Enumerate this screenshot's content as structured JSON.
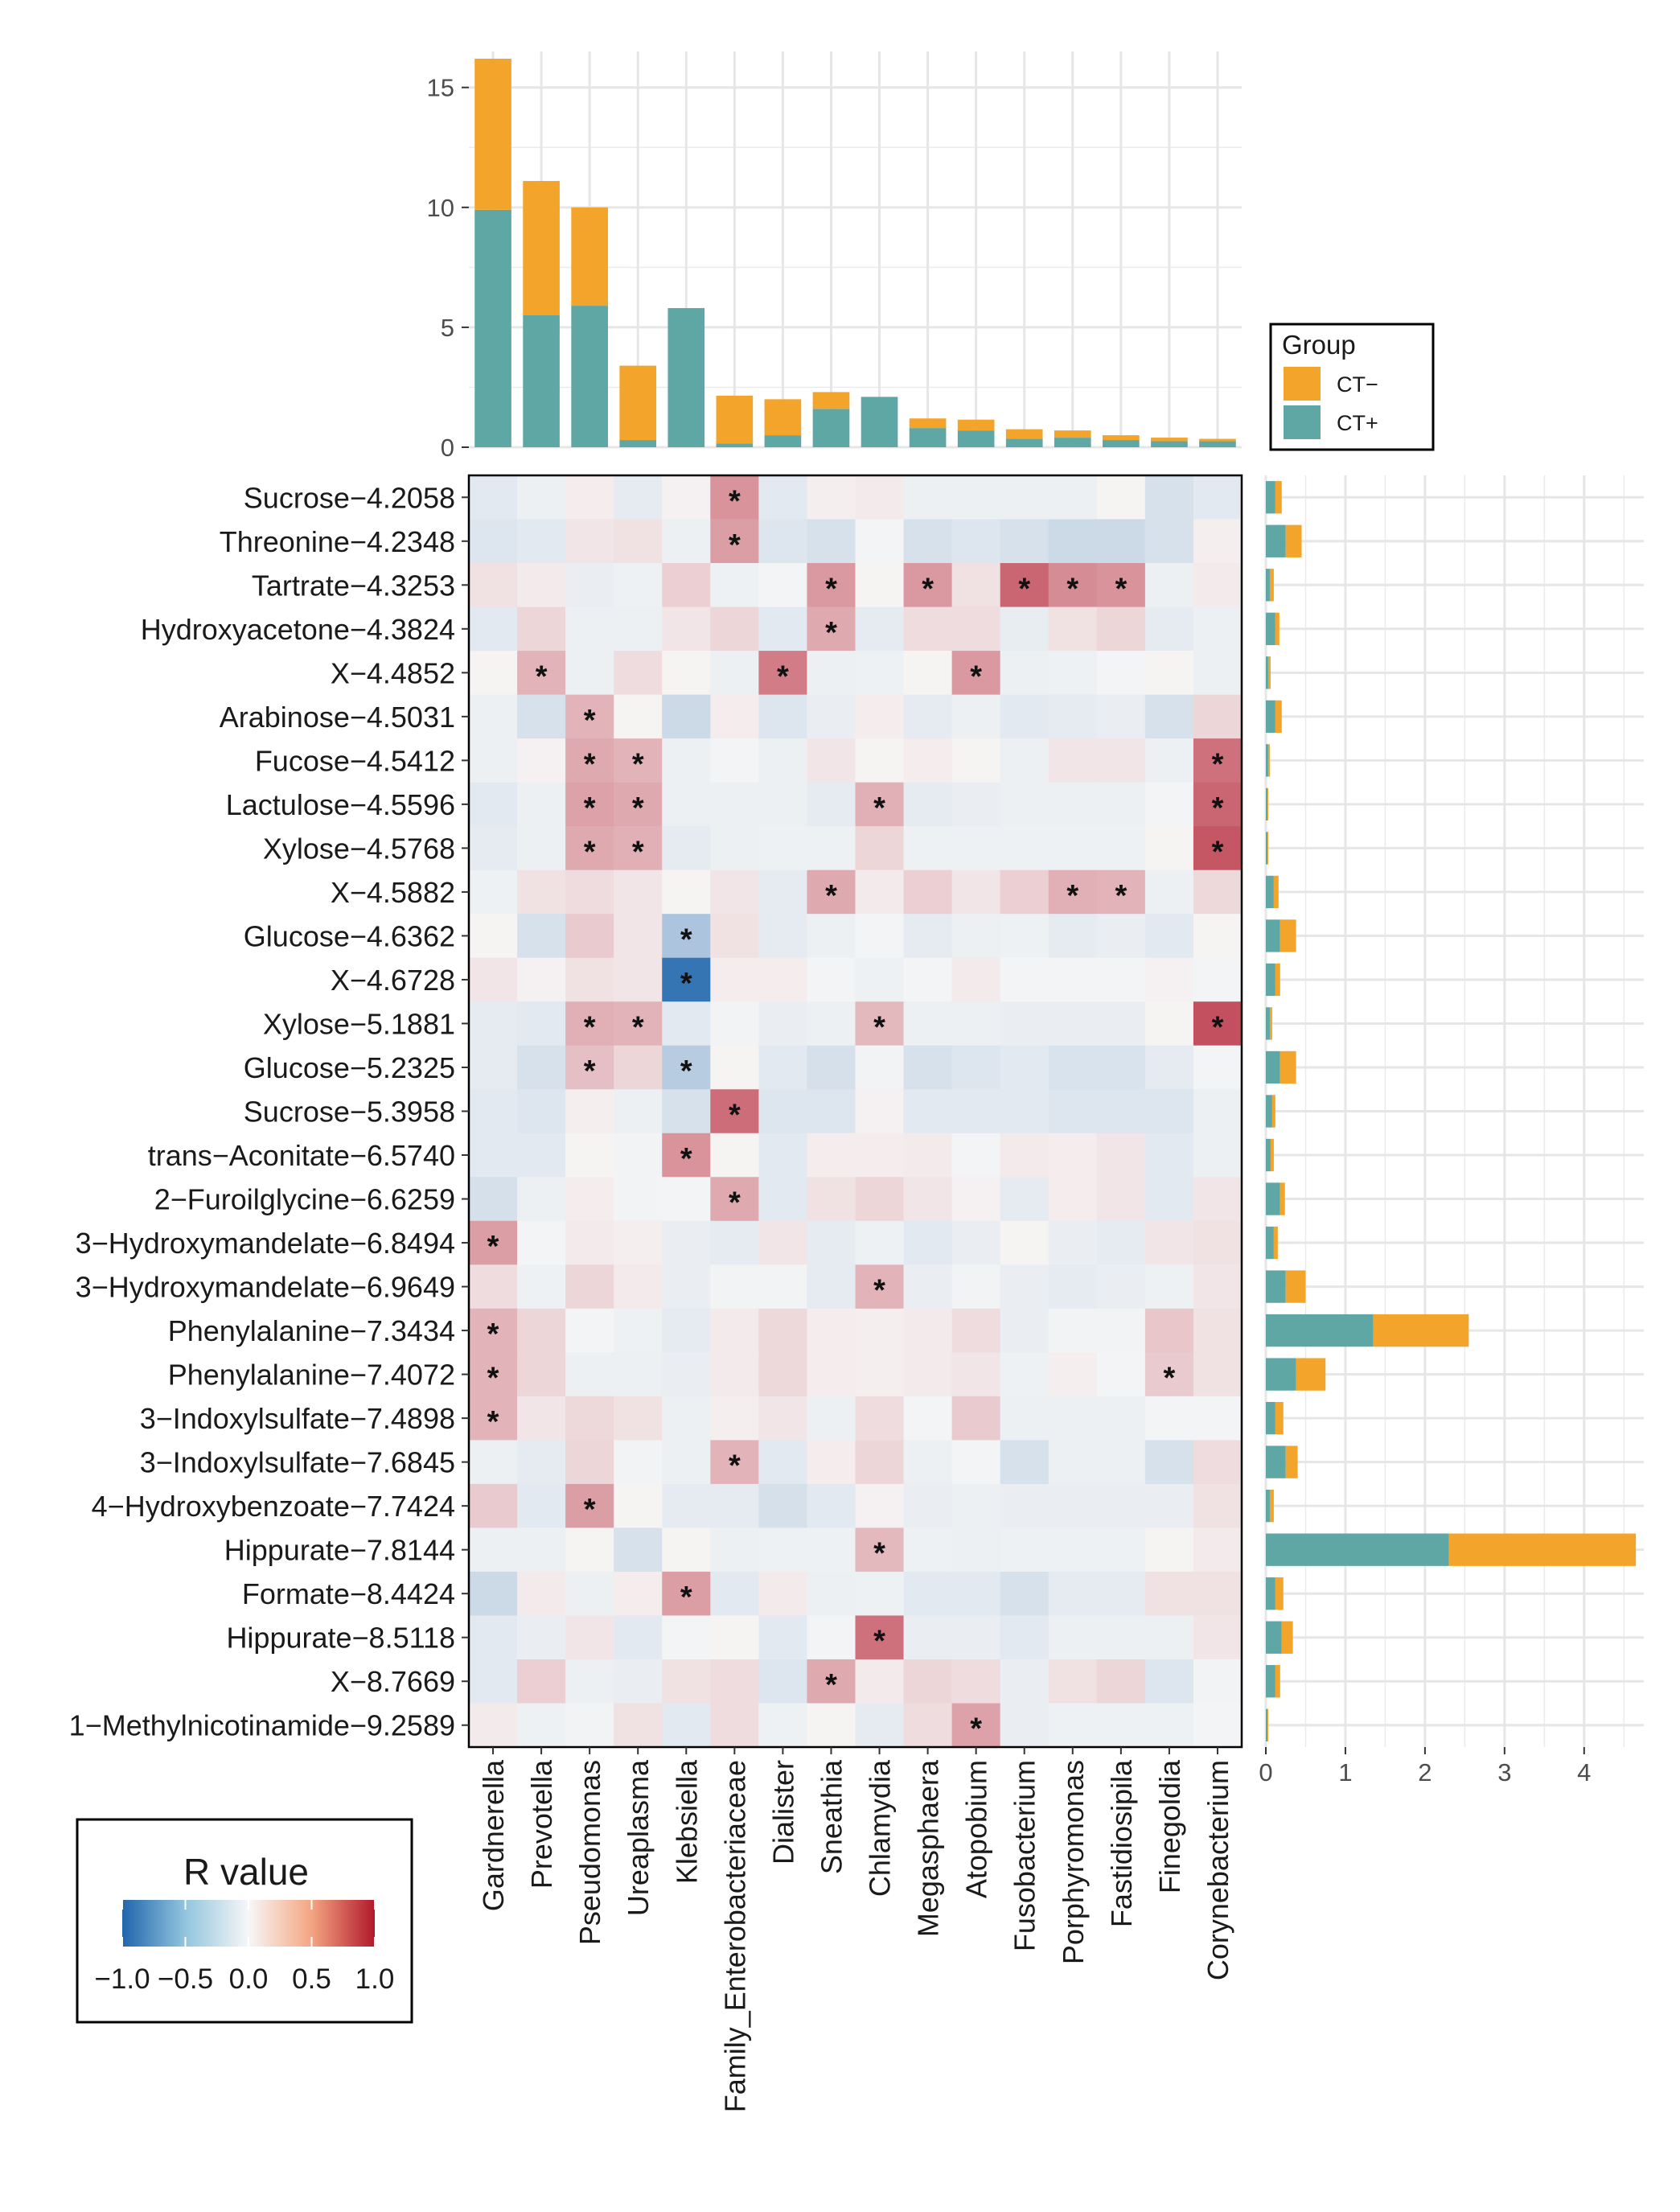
{
  "chart_data": [
    {
      "type": "heatmap",
      "title": "",
      "colorbar_title": "R value",
      "colorbar_ticks": [
        "−1.0",
        "−0.5",
        "0.0",
        "0.5",
        "1.0"
      ],
      "colorbar_range": [
        -1,
        1
      ],
      "colors": {
        "negative": "#2166ac",
        "zero": "#f7f7f7",
        "positive": "#b2182b"
      },
      "significance_marker": "*",
      "columns": [
        "Gardnerella",
        "Prevotella",
        "Pseudomonas",
        "Ureaplasma",
        "Klebsiella",
        "Family_Enterobacteriaceae",
        "Dialister",
        "Sneathia",
        "Chlamydia",
        "Megasphaera",
        "Atopobium",
        "Fusobacterium",
        "Porphyromonas",
        "Fastidiosipila",
        "Finegoldia",
        "Corynebacterium"
      ],
      "rows": [
        "Sucrose−4.2058",
        "Threonine−4.2348",
        "Tartrate−4.3253",
        "Hydroxyacetone−4.3824",
        "X−4.4852",
        "Arabinose−4.5031",
        "Fucose−4.5412",
        "Lactulose−4.5596",
        "Xylose−4.5768",
        "X−4.5882",
        "Glucose−4.6362",
        "X−4.6728",
        "Xylose−5.1881",
        "Glucose−5.2325",
        "Sucrose−5.3958",
        "trans−Aconitate−6.5740",
        "2−Furoilglycine−6.6259",
        "3−Hydroxymandelate−6.8494",
        "3−Hydroxymandelate−6.9649",
        "Phenylalanine−7.3434",
        "Phenylalanine−7.4072",
        "3−Indoxylsulfate−7.4898",
        "3−Indoxylsulfate−7.6845",
        "4−Hydroxybenzoate−7.7424",
        "Hippurate−7.8144",
        "Formate−8.4424",
        "Hippurate−8.5118",
        "X−8.7669",
        "1−Methylnicotinamide−9.2589"
      ],
      "values": [
        [
          -0.1,
          -0.05,
          0.05,
          -0.08,
          0.03,
          0.45,
          -0.1,
          0.04,
          0.06,
          -0.05,
          -0.05,
          -0.05,
          -0.05,
          0.02,
          -0.15,
          -0.1
        ],
        [
          -0.12,
          -0.1,
          0.08,
          0.1,
          -0.05,
          0.4,
          -0.12,
          -0.15,
          -0.02,
          -0.15,
          -0.12,
          -0.15,
          -0.2,
          -0.2,
          -0.15,
          0.04
        ],
        [
          0.1,
          0.06,
          -0.06,
          -0.04,
          0.18,
          -0.04,
          -0.02,
          0.42,
          0.02,
          0.42,
          0.1,
          0.65,
          0.48,
          0.45,
          -0.05,
          0.06
        ],
        [
          -0.1,
          0.15,
          -0.05,
          -0.05,
          0.08,
          0.15,
          -0.1,
          0.35,
          -0.08,
          0.12,
          0.12,
          -0.07,
          0.1,
          0.15,
          -0.08,
          -0.05
        ],
        [
          0.02,
          0.3,
          -0.05,
          0.12,
          0.02,
          -0.05,
          0.55,
          -0.05,
          -0.04,
          0.02,
          0.42,
          -0.05,
          -0.04,
          -0.02,
          0.02,
          -0.05
        ],
        [
          -0.05,
          -0.15,
          0.3,
          0.02,
          -0.2,
          0.05,
          -0.12,
          -0.06,
          0.05,
          -0.08,
          -0.05,
          -0.1,
          -0.08,
          -0.06,
          -0.15,
          0.15
        ],
        [
          -0.05,
          0.03,
          0.35,
          0.3,
          -0.05,
          -0.02,
          -0.05,
          0.08,
          0.02,
          0.05,
          0.02,
          -0.05,
          0.08,
          0.08,
          -0.05,
          0.6
        ],
        [
          -0.1,
          -0.05,
          0.38,
          0.35,
          -0.05,
          -0.05,
          -0.05,
          -0.08,
          0.32,
          -0.08,
          -0.06,
          -0.05,
          -0.05,
          -0.05,
          -0.02,
          0.65
        ],
        [
          -0.08,
          -0.05,
          0.35,
          0.32,
          -0.08,
          -0.05,
          -0.04,
          -0.04,
          0.15,
          -0.04,
          -0.04,
          -0.04,
          -0.04,
          -0.04,
          0.02,
          0.72
        ],
        [
          -0.04,
          0.1,
          0.12,
          0.08,
          0.02,
          0.08,
          -0.08,
          0.35,
          0.06,
          0.18,
          0.08,
          0.18,
          0.32,
          0.3,
          -0.05,
          0.14
        ],
        [
          0.02,
          -0.15,
          0.2,
          0.08,
          -0.35,
          0.1,
          -0.08,
          -0.05,
          -0.02,
          -0.08,
          -0.05,
          -0.04,
          -0.08,
          -0.06,
          -0.1,
          0.02
        ],
        [
          0.08,
          0.03,
          0.1,
          0.08,
          -0.9,
          0.05,
          0.05,
          -0.02,
          -0.04,
          -0.02,
          0.06,
          -0.02,
          -0.02,
          -0.02,
          0.03,
          -0.02
        ],
        [
          -0.08,
          -0.1,
          0.32,
          0.3,
          -0.1,
          -0.03,
          -0.06,
          -0.05,
          0.28,
          -0.05,
          -0.05,
          -0.06,
          -0.06,
          -0.06,
          0.02,
          0.75
        ],
        [
          -0.08,
          -0.15,
          0.25,
          0.15,
          -0.3,
          0.02,
          -0.1,
          -0.16,
          -0.03,
          -0.15,
          -0.12,
          -0.1,
          -0.14,
          -0.14,
          -0.08,
          -0.02
        ],
        [
          -0.1,
          -0.12,
          0.04,
          -0.05,
          -0.15,
          0.62,
          -0.12,
          -0.12,
          0.03,
          -0.1,
          -0.1,
          -0.1,
          -0.12,
          -0.12,
          -0.12,
          -0.05
        ],
        [
          -0.1,
          -0.1,
          0.02,
          -0.03,
          0.45,
          0.02,
          -0.1,
          0.05,
          0.05,
          0.06,
          -0.02,
          0.06,
          0.05,
          0.08,
          -0.1,
          -0.05
        ],
        [
          -0.16,
          -0.05,
          0.05,
          -0.03,
          -0.02,
          0.35,
          -0.1,
          0.1,
          0.15,
          0.08,
          0.03,
          -0.08,
          0.05,
          0.08,
          -0.1,
          0.08
        ],
        [
          0.4,
          -0.02,
          0.06,
          0.04,
          -0.06,
          -0.08,
          0.08,
          -0.08,
          -0.04,
          -0.1,
          -0.06,
          0.02,
          -0.06,
          -0.08,
          0.08,
          0.1
        ],
        [
          0.12,
          -0.04,
          0.15,
          0.06,
          -0.06,
          -0.03,
          -0.03,
          -0.08,
          0.3,
          -0.06,
          -0.03,
          -0.06,
          -0.08,
          -0.06,
          -0.04,
          0.08
        ],
        [
          0.3,
          0.15,
          -0.02,
          -0.04,
          -0.08,
          0.06,
          0.14,
          0.05,
          0.04,
          0.06,
          0.12,
          -0.06,
          -0.03,
          -0.03,
          0.22,
          0.1
        ],
        [
          0.3,
          0.15,
          -0.05,
          -0.05,
          -0.06,
          0.06,
          0.14,
          0.05,
          0.04,
          0.06,
          0.08,
          -0.04,
          0.04,
          -0.02,
          0.2,
          0.1
        ],
        [
          0.3,
          0.08,
          0.14,
          0.1,
          -0.05,
          0.04,
          0.08,
          -0.05,
          0.12,
          -0.02,
          0.2,
          -0.05,
          -0.05,
          -0.05,
          -0.02,
          -0.02
        ],
        [
          -0.05,
          -0.08,
          0.15,
          -0.03,
          -0.05,
          0.3,
          -0.1,
          0.05,
          0.15,
          -0.05,
          -0.02,
          -0.15,
          -0.05,
          -0.05,
          -0.15,
          0.12
        ],
        [
          0.2,
          -0.1,
          0.4,
          0.02,
          -0.08,
          -0.08,
          -0.16,
          -0.1,
          0.03,
          -0.06,
          -0.05,
          -0.06,
          -0.06,
          -0.06,
          -0.06,
          0.1
        ],
        [
          -0.05,
          -0.05,
          0.02,
          -0.15,
          0.02,
          -0.05,
          -0.04,
          -0.04,
          0.28,
          -0.04,
          -0.05,
          -0.04,
          -0.04,
          -0.04,
          0.02,
          0.06
        ],
        [
          -0.2,
          0.06,
          -0.05,
          0.05,
          0.4,
          -0.1,
          0.06,
          -0.05,
          -0.04,
          -0.1,
          -0.1,
          -0.15,
          -0.08,
          -0.08,
          0.1,
          0.1
        ],
        [
          -0.1,
          -0.06,
          0.08,
          -0.1,
          -0.02,
          0.02,
          -0.1,
          -0.02,
          0.6,
          -0.06,
          -0.06,
          -0.1,
          -0.05,
          -0.05,
          -0.05,
          0.08
        ],
        [
          -0.1,
          0.18,
          -0.05,
          -0.06,
          0.1,
          0.12,
          -0.12,
          0.35,
          0.06,
          0.15,
          0.12,
          -0.06,
          0.1,
          0.15,
          -0.12,
          -0.03
        ],
        [
          0.06,
          -0.04,
          -0.03,
          0.1,
          -0.1,
          0.12,
          -0.04,
          0.02,
          -0.08,
          0.12,
          0.38,
          -0.06,
          -0.04,
          -0.04,
          -0.04,
          -0.02
        ]
      ],
      "significant": [
        [
          0,
          5
        ],
        [
          1,
          5
        ],
        [
          2,
          7
        ],
        [
          2,
          9
        ],
        [
          2,
          11
        ],
        [
          2,
          12
        ],
        [
          2,
          13
        ],
        [
          3,
          7
        ],
        [
          4,
          1
        ],
        [
          4,
          6
        ],
        [
          4,
          10
        ],
        [
          5,
          2
        ],
        [
          6,
          2
        ],
        [
          6,
          3
        ],
        [
          6,
          15
        ],
        [
          7,
          2
        ],
        [
          7,
          3
        ],
        [
          7,
          8
        ],
        [
          7,
          15
        ],
        [
          8,
          2
        ],
        [
          8,
          3
        ],
        [
          8,
          15
        ],
        [
          9,
          7
        ],
        [
          9,
          12
        ],
        [
          9,
          13
        ],
        [
          10,
          4
        ],
        [
          11,
          4
        ],
        [
          12,
          2
        ],
        [
          12,
          3
        ],
        [
          12,
          8
        ],
        [
          12,
          15
        ],
        [
          13,
          2
        ],
        [
          13,
          4
        ],
        [
          14,
          5
        ],
        [
          15,
          4
        ],
        [
          16,
          5
        ],
        [
          17,
          0
        ],
        [
          18,
          8
        ],
        [
          19,
          0
        ],
        [
          20,
          0
        ],
        [
          20,
          14
        ],
        [
          21,
          0
        ],
        [
          22,
          5
        ],
        [
          23,
          2
        ],
        [
          24,
          8
        ],
        [
          25,
          4
        ],
        [
          26,
          8
        ],
        [
          27,
          7
        ],
        [
          28,
          10
        ]
      ]
    },
    {
      "type": "bar",
      "orientation": "vertical",
      "stacked": true,
      "categories": [
        "Gardnerella",
        "Prevotella",
        "Pseudomonas",
        "Ureaplasma",
        "Klebsiella",
        "Family_Enterobacteriaceae",
        "Dialister",
        "Sneathia",
        "Chlamydia",
        "Megasphaera",
        "Atopobium",
        "Fusobacterium",
        "Porphyromonas",
        "Fastidiosipila",
        "Finegoldia",
        "Corynebacterium"
      ],
      "series": [
        {
          "name": "CT+",
          "color": "#5fa7a4",
          "values": [
            9.9,
            5.5,
            5.9,
            0.3,
            5.8,
            0.15,
            0.5,
            1.6,
            2.1,
            0.8,
            0.7,
            0.35,
            0.4,
            0.3,
            0.25,
            0.25
          ]
        },
        {
          "name": "CT−",
          "color": "#f3a42a",
          "values": [
            6.3,
            5.6,
            4.1,
            3.1,
            0.0,
            2.0,
            1.5,
            0.7,
            0.0,
            0.4,
            0.45,
            0.4,
            0.3,
            0.2,
            0.15,
            0.1
          ]
        }
      ],
      "yticks": [
        "0",
        "5",
        "10",
        "15"
      ],
      "ylim": [
        0,
        16.5
      ],
      "legend": {
        "title": "Group",
        "items": [
          "CT−",
          "CT+"
        ],
        "placement": "right"
      }
    },
    {
      "type": "bar",
      "orientation": "horizontal",
      "stacked": true,
      "categories": [
        "Sucrose−4.2058",
        "Threonine−4.2348",
        "Tartrate−4.3253",
        "Hydroxyacetone−4.3824",
        "X−4.4852",
        "Arabinose−4.5031",
        "Fucose−4.5412",
        "Lactulose−4.5596",
        "Xylose−4.5768",
        "X−4.5882",
        "Glucose−4.6362",
        "X−4.6728",
        "Xylose−5.1881",
        "Glucose−5.2325",
        "Sucrose−5.3958",
        "trans−Aconitate−6.5740",
        "2−Furoilglycine−6.6259",
        "3−Hydroxymandelate−6.8494",
        "3−Hydroxymandelate−6.9649",
        "Phenylalanine−7.3434",
        "Phenylalanine−7.4072",
        "3−Indoxylsulfate−7.4898",
        "3−Indoxylsulfate−7.6845",
        "4−Hydroxybenzoate−7.7424",
        "Hippurate−7.8144",
        "Formate−8.4424",
        "Hippurate−8.5118",
        "X−8.7669",
        "1−Methylnicotinamide−9.2589"
      ],
      "series": [
        {
          "name": "CT+",
          "color": "#5fa7a4",
          "values": [
            0.12,
            0.25,
            0.05,
            0.12,
            0.03,
            0.12,
            0.03,
            0.02,
            0.02,
            0.1,
            0.18,
            0.12,
            0.05,
            0.18,
            0.08,
            0.06,
            0.18,
            0.1,
            0.25,
            1.35,
            0.38,
            0.12,
            0.25,
            0.05,
            2.3,
            0.12,
            0.2,
            0.12,
            0.02
          ]
        },
        {
          "name": "CT−",
          "color": "#f3a42a",
          "values": [
            0.08,
            0.2,
            0.05,
            0.05,
            0.03,
            0.08,
            0.02,
            0.01,
            0.01,
            0.06,
            0.2,
            0.06,
            0.03,
            0.2,
            0.04,
            0.04,
            0.06,
            0.05,
            0.25,
            1.2,
            0.37,
            0.1,
            0.15,
            0.05,
            2.35,
            0.1,
            0.14,
            0.06,
            0.01
          ]
        }
      ],
      "xticks": [
        "0",
        "1",
        "2",
        "3",
        "4"
      ],
      "xlim": [
        0,
        4.75
      ]
    }
  ]
}
